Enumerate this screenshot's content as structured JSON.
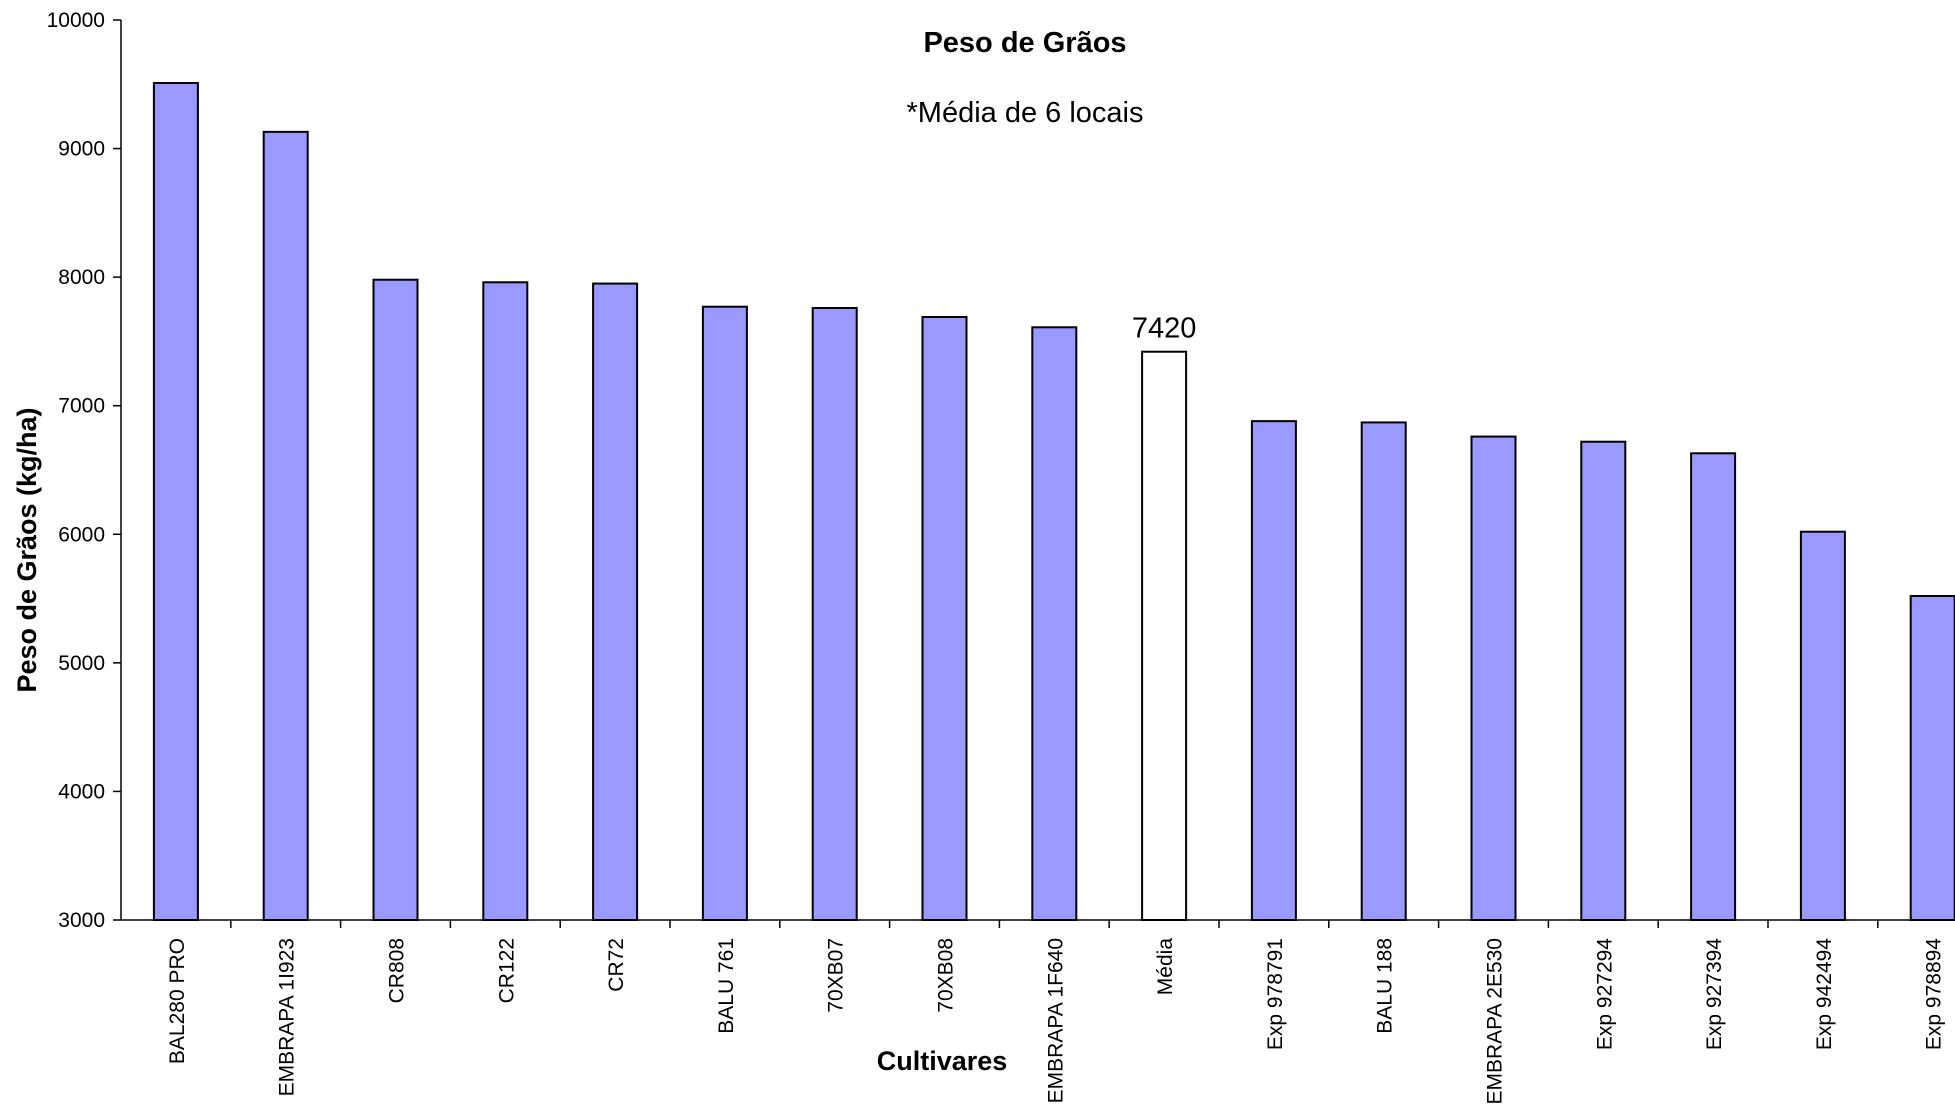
{
  "chart_data": {
    "type": "bar",
    "title": "Peso de Grãos",
    "subtitle": "*Média de 6 locais",
    "xlabel": "Cultivares",
    "ylabel": "Peso de Grãos (kg/ha)",
    "ylim": [
      3000,
      10000
    ],
    "yticks": [
      3000,
      4000,
      5000,
      6000,
      7000,
      8000,
      9000,
      10000
    ],
    "grid": false,
    "legend": "none",
    "categories": [
      "BAL280 PRO",
      "EMBRAPA 1I923",
      "CR808",
      "CR122",
      "CR72",
      "BALU 761",
      "70XB07",
      "70XB08",
      "EMBRAPA 1F640",
      "Média",
      "Exp 978791",
      "BALU 188",
      "EMBRAPA 2E530",
      "Exp 927294",
      "Exp 927394",
      "Exp 942494",
      "Exp 978894"
    ],
    "values": [
      9510,
      9130,
      7980,
      7960,
      7950,
      7770,
      7760,
      7690,
      7610,
      7420,
      6880,
      6870,
      6760,
      6720,
      6630,
      6020,
      5520
    ],
    "data_labels": {
      "Média": "7420"
    },
    "colors": {
      "bar": "#9999ff",
      "highlight": "#ffffff",
      "outline": "#000000"
    }
  }
}
